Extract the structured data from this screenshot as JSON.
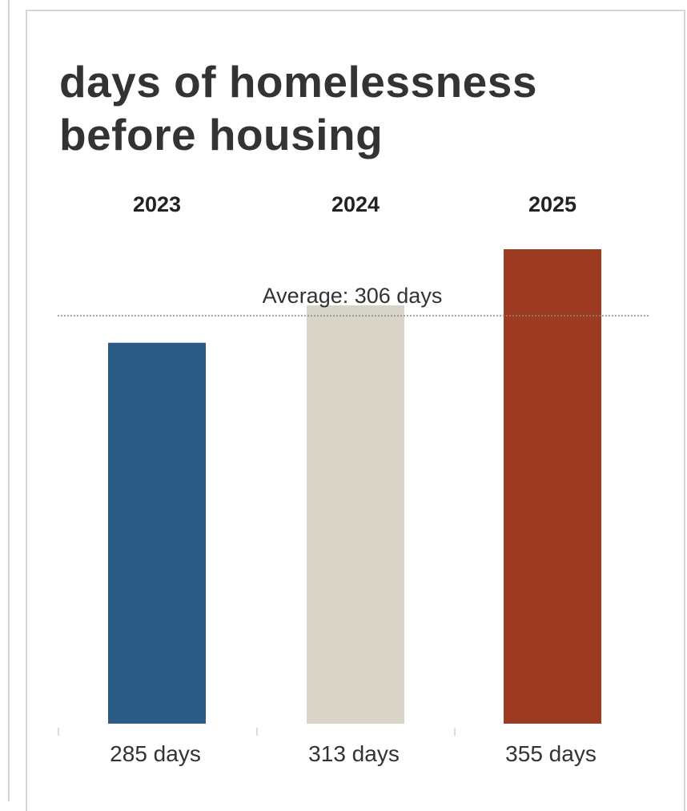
{
  "chart_data": {
    "type": "bar",
    "title": "days of homelessness before housing",
    "categories": [
      "2023",
      "2024",
      "2025"
    ],
    "values": [
      285,
      313,
      355
    ],
    "value_labels": [
      "285 days",
      "313 days",
      "355 days"
    ],
    "bar_colors": [
      "#2d5b88",
      "#d8d4c8",
      "#9d3b22"
    ],
    "average": {
      "value": 306,
      "label": "Average: 306 days"
    },
    "ylim": [
      0,
      355
    ],
    "grid": false,
    "legend": "none"
  }
}
